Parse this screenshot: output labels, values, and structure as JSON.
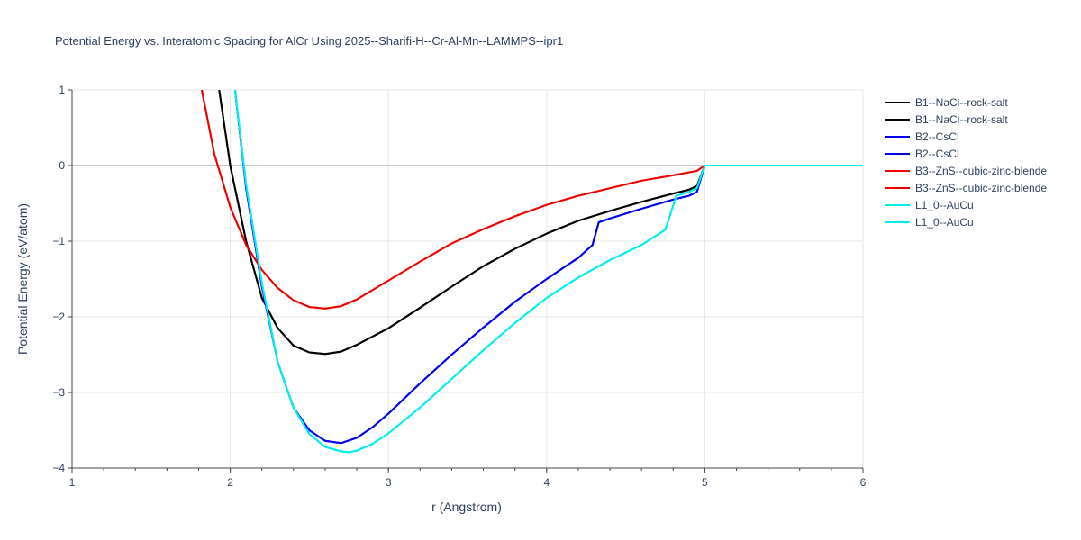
{
  "chart_data": {
    "type": "line",
    "title": "Potential Energy vs. Interatomic Spacing for AlCr Using 2025--Sharifi-H--Cr-Al-Mn--LAMMPS--ipr1",
    "xlabel": "r (Angstrom)",
    "ylabel": "Potential Energy (eV/atom)",
    "xlim": [
      1,
      6
    ],
    "ylim": [
      -4,
      1
    ],
    "xticks": [
      "1",
      "2",
      "3",
      "4",
      "5",
      "6"
    ],
    "yticks": [
      "1",
      "0",
      "−1",
      "−2",
      "−3",
      "−4"
    ],
    "grid": true,
    "legend_position": "right",
    "series": [
      {
        "name": "B1--NaCl--rock-salt",
        "color": "#000000",
        "x": [
          1.93,
          2.0,
          2.1,
          2.2,
          2.3,
          2.4,
          2.5,
          2.6,
          2.7,
          2.8,
          3.0,
          3.2,
          3.4,
          3.6,
          3.8,
          4.0,
          4.2,
          4.4,
          4.6,
          4.8,
          4.9,
          4.95,
          5.0
        ],
        "y": [
          1.0,
          0.0,
          -1.0,
          -1.75,
          -2.15,
          -2.38,
          -2.47,
          -2.49,
          -2.46,
          -2.37,
          -2.15,
          -1.88,
          -1.6,
          -1.33,
          -1.1,
          -0.9,
          -0.73,
          -0.6,
          -0.48,
          -0.37,
          -0.32,
          -0.27,
          0.0
        ]
      },
      {
        "name": "B1--NaCl--rock-salt",
        "color": "#000000",
        "x": [
          1.93,
          2.0,
          2.1,
          2.2,
          2.3,
          2.4,
          2.5,
          2.6,
          2.7,
          2.8,
          3.0,
          3.2,
          3.4,
          3.6,
          3.8,
          4.0,
          4.2,
          4.4,
          4.6,
          4.8,
          4.9,
          4.95,
          5.0
        ],
        "y": [
          1.0,
          0.0,
          -1.0,
          -1.75,
          -2.15,
          -2.38,
          -2.47,
          -2.49,
          -2.46,
          -2.37,
          -2.15,
          -1.88,
          -1.6,
          -1.33,
          -1.1,
          -0.9,
          -0.73,
          -0.6,
          -0.48,
          -0.37,
          -0.32,
          -0.27,
          0.0
        ]
      },
      {
        "name": "B2--CsCl",
        "color": "#0000ee",
        "x": [
          2.03,
          2.1,
          2.2,
          2.3,
          2.4,
          2.5,
          2.6,
          2.7,
          2.8,
          2.9,
          3.0,
          3.2,
          3.4,
          3.6,
          3.8,
          4.0,
          4.2,
          4.29,
          4.33,
          4.4,
          4.6,
          4.8,
          4.9,
          4.95,
          5.0
        ],
        "y": [
          1.0,
          -0.3,
          -1.6,
          -2.6,
          -3.2,
          -3.5,
          -3.64,
          -3.67,
          -3.6,
          -3.46,
          -3.28,
          -2.88,
          -2.5,
          -2.14,
          -1.8,
          -1.5,
          -1.22,
          -1.05,
          -0.75,
          -0.7,
          -0.57,
          -0.45,
          -0.4,
          -0.35,
          0.0
        ]
      },
      {
        "name": "B2--CsCl",
        "color": "#0000ee",
        "x": [
          2.03,
          2.1,
          2.2,
          2.3,
          2.4,
          2.5,
          2.6,
          2.7,
          2.8,
          2.9,
          3.0,
          3.2,
          3.4,
          3.6,
          3.8,
          4.0,
          4.2,
          4.29,
          4.33,
          4.4,
          4.6,
          4.8,
          4.9,
          4.95,
          5.0
        ],
        "y": [
          1.0,
          -0.3,
          -1.6,
          -2.6,
          -3.2,
          -3.5,
          -3.64,
          -3.67,
          -3.6,
          -3.46,
          -3.28,
          -2.88,
          -2.5,
          -2.14,
          -1.8,
          -1.5,
          -1.22,
          -1.05,
          -0.75,
          -0.7,
          -0.57,
          -0.45,
          -0.4,
          -0.35,
          0.0
        ]
      },
      {
        "name": "B3--ZnS--cubic-zinc-blende",
        "color": "#ee0000",
        "x": [
          1.82,
          1.9,
          2.0,
          2.1,
          2.2,
          2.3,
          2.4,
          2.5,
          2.6,
          2.7,
          2.8,
          3.0,
          3.2,
          3.4,
          3.6,
          3.8,
          4.0,
          4.2,
          4.4,
          4.6,
          4.8,
          4.95,
          5.0
        ],
        "y": [
          1.0,
          0.15,
          -0.55,
          -1.05,
          -1.38,
          -1.62,
          -1.78,
          -1.87,
          -1.89,
          -1.86,
          -1.77,
          -1.52,
          -1.27,
          -1.03,
          -0.84,
          -0.67,
          -0.52,
          -0.4,
          -0.3,
          -0.2,
          -0.13,
          -0.07,
          0.0
        ]
      },
      {
        "name": "B3--ZnS--cubic-zinc-blende",
        "color": "#ee0000",
        "x": [
          1.82,
          1.9,
          2.0,
          2.1,
          2.2,
          2.3,
          2.4,
          2.5,
          2.6,
          2.7,
          2.8,
          3.0,
          3.2,
          3.4,
          3.6,
          3.8,
          4.0,
          4.2,
          4.4,
          4.6,
          4.8,
          4.95,
          5.0
        ],
        "y": [
          1.0,
          0.15,
          -0.55,
          -1.05,
          -1.38,
          -1.62,
          -1.78,
          -1.87,
          -1.89,
          -1.86,
          -1.77,
          -1.52,
          -1.27,
          -1.03,
          -0.84,
          -0.67,
          -0.52,
          -0.4,
          -0.3,
          -0.2,
          -0.13,
          -0.07,
          0.0
        ]
      },
      {
        "name": "L1_0--AuCu",
        "color": "#00eeee",
        "x": [
          2.03,
          2.1,
          2.2,
          2.3,
          2.4,
          2.5,
          2.6,
          2.7,
          2.75,
          2.8,
          2.9,
          3.0,
          3.2,
          3.4,
          3.6,
          3.8,
          4.0,
          4.2,
          4.4,
          4.6,
          4.75,
          4.82,
          4.9,
          4.95,
          5.0,
          6.0
        ],
        "y": [
          1.0,
          -0.25,
          -1.55,
          -2.6,
          -3.2,
          -3.55,
          -3.72,
          -3.78,
          -3.79,
          -3.77,
          -3.68,
          -3.54,
          -3.2,
          -2.82,
          -2.44,
          -2.08,
          -1.75,
          -1.48,
          -1.25,
          -1.05,
          -0.85,
          -0.4,
          -0.35,
          -0.3,
          0.0,
          0.0
        ]
      },
      {
        "name": "L1_0--AuCu",
        "color": "#00eeee",
        "x": [
          2.03,
          2.1,
          2.2,
          2.3,
          2.4,
          2.5,
          2.6,
          2.7,
          2.75,
          2.8,
          2.9,
          3.0,
          3.2,
          3.4,
          3.6,
          3.8,
          4.0,
          4.2,
          4.4,
          4.6,
          4.75,
          4.82,
          4.9,
          4.95,
          5.0,
          6.0
        ],
        "y": [
          1.0,
          -0.25,
          -1.55,
          -2.6,
          -3.2,
          -3.55,
          -3.72,
          -3.78,
          -3.79,
          -3.77,
          -3.68,
          -3.54,
          -3.2,
          -2.82,
          -2.44,
          -2.08,
          -1.75,
          -1.48,
          -1.25,
          -1.05,
          -0.85,
          -0.4,
          -0.35,
          -0.3,
          0.0,
          0.0
        ]
      }
    ]
  }
}
